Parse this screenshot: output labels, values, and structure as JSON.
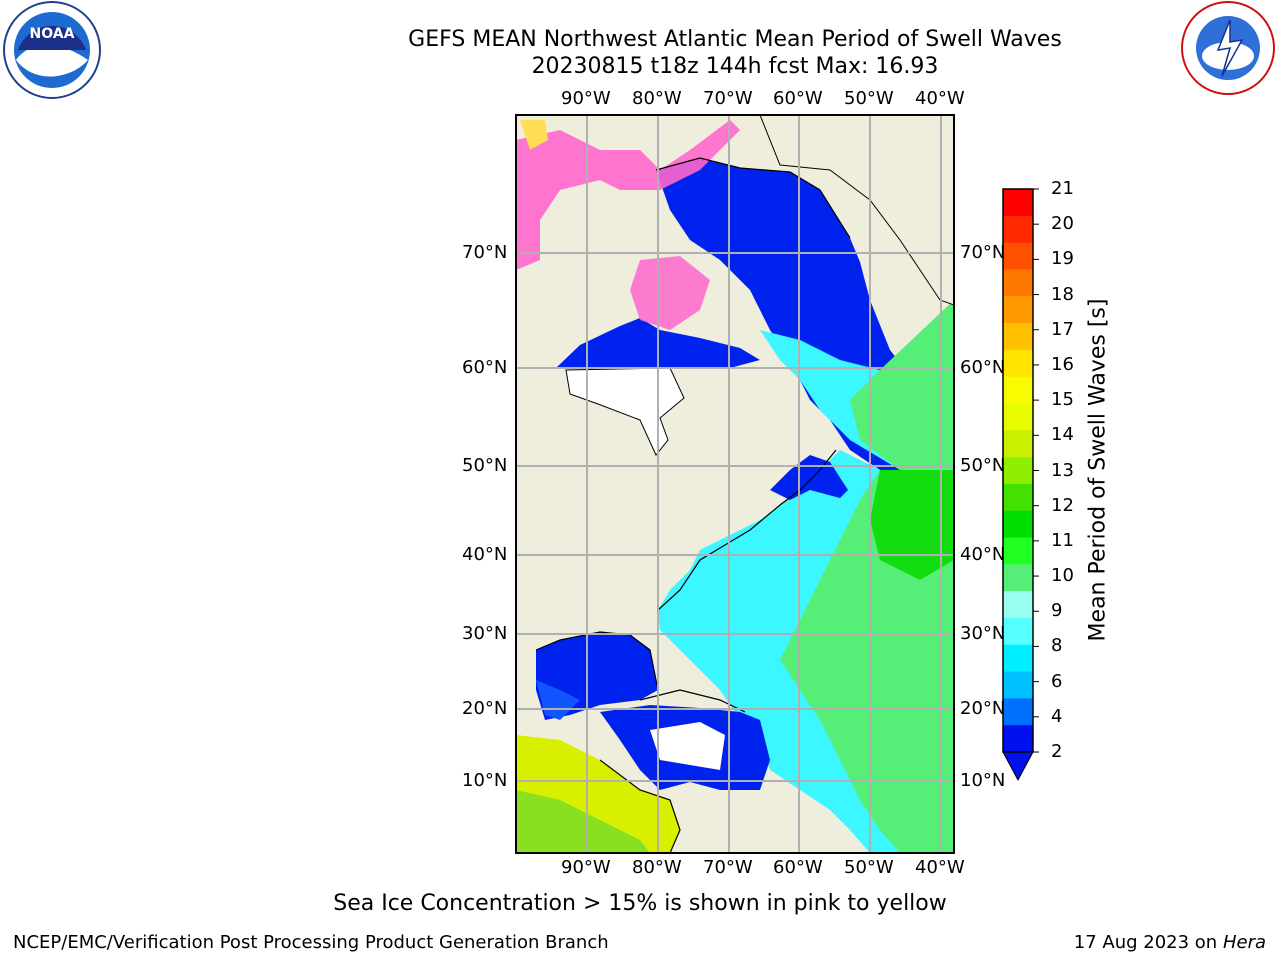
{
  "header": {
    "title_line1": "GEFS MEAN Northwest Atlantic Mean Period of Swell Waves",
    "title_line2": "20230815 t18z 144h fcst   Max: 16.93"
  },
  "logos": {
    "left": "noaa-logo",
    "right": "nws-logo"
  },
  "map": {
    "lon_labels": [
      "90°W",
      "80°W",
      "70°W",
      "60°W",
      "50°W",
      "40°W"
    ],
    "lat_labels": [
      "70°N",
      "60°N",
      "50°N",
      "40°N",
      "30°N",
      "20°N",
      "10°N"
    ],
    "land_color": "#efeedc",
    "grid_color": "#b0b0b0",
    "ocean_fields": [
      {
        "name": "low-period",
        "color": "#0022ee"
      },
      {
        "name": "mid-period",
        "color": "#3cf7ff"
      },
      {
        "name": "high-period",
        "color": "#55ee77"
      },
      {
        "name": "peak-period",
        "color": "#11dd11"
      },
      {
        "name": "sea-ice",
        "color": "#ff66cc"
      }
    ]
  },
  "colorbar": {
    "title": "Mean Period of Swell Waves [s]",
    "tick_labels": [
      "21",
      "20",
      "19",
      "18",
      "17",
      "16",
      "15",
      "14",
      "13",
      "12",
      "11",
      "10",
      "9",
      "8",
      "6",
      "4",
      "2"
    ],
    "colors": [
      "#ff0000",
      "#ff2800",
      "#ff5000",
      "#ff7800",
      "#ff9a00",
      "#ffc000",
      "#ffe400",
      "#f8fc00",
      "#e8fc00",
      "#c8f000",
      "#8ef000",
      "#44e000",
      "#00dd00",
      "#22ff22",
      "#55ee77",
      "#99ffee",
      "#55ffff",
      "#00eeff",
      "#00c0ff",
      "#0070ff",
      "#0010ee"
    ]
  },
  "caption": "Sea Ice Concentration > 15% is shown in pink to yellow",
  "footer": {
    "left": "NCEP/EMC/Verification Post Processing Product Generation Branch",
    "right_date": "17 Aug 2023 on",
    "right_host": "Hera"
  }
}
